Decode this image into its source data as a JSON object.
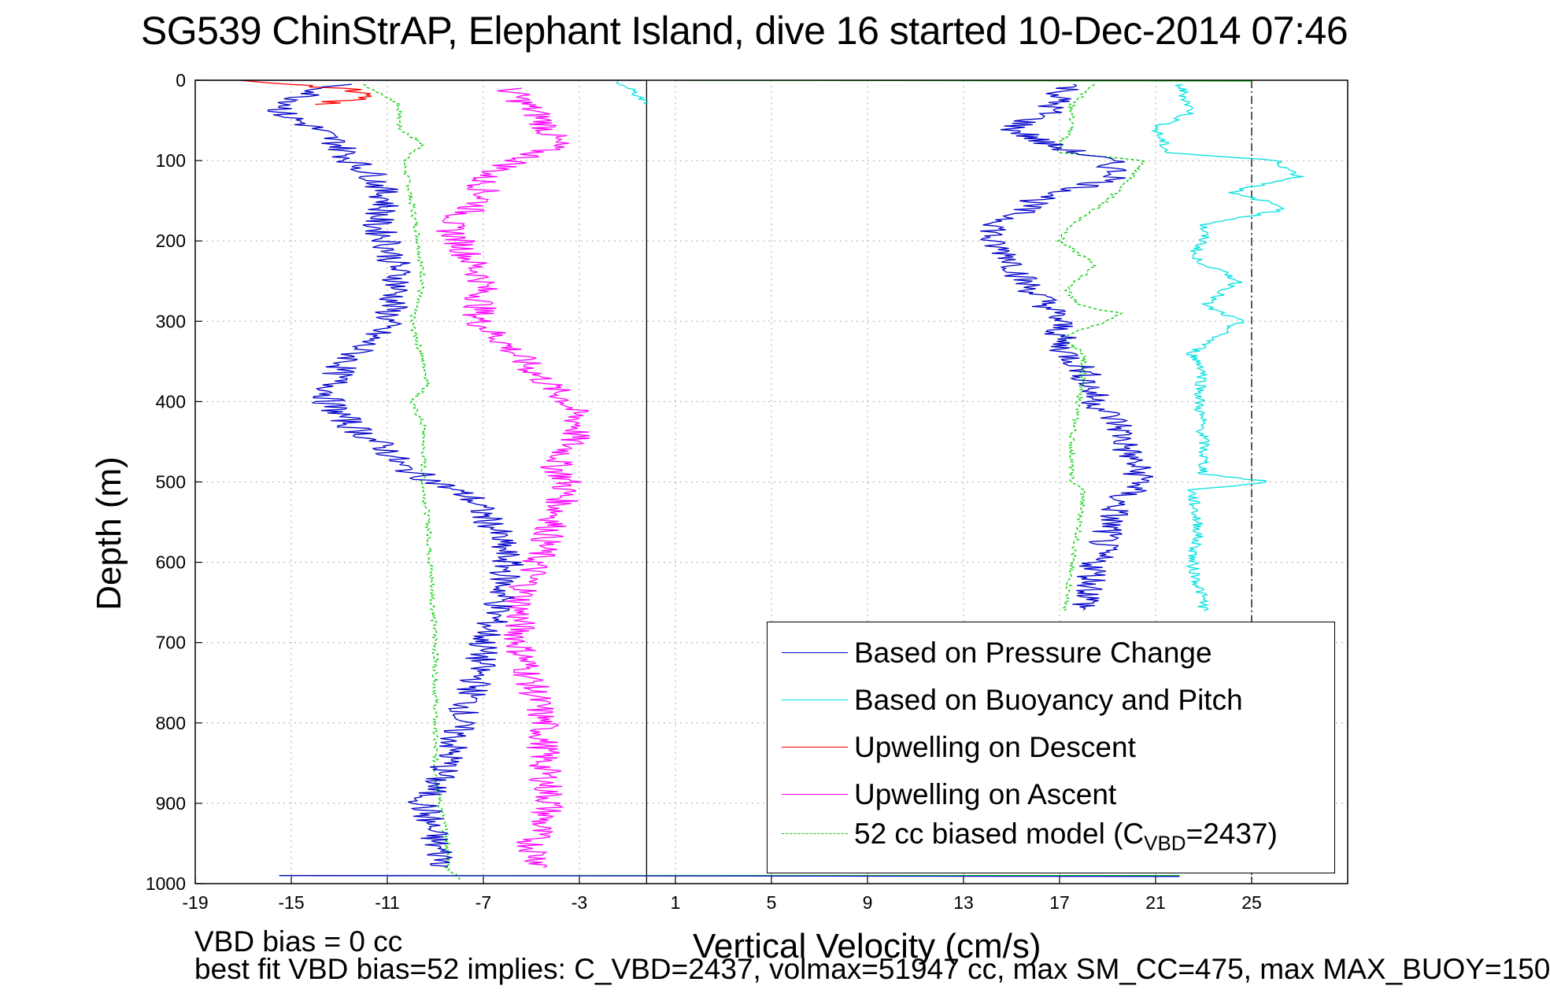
{
  "title": "SG539 ChinStrAP, Elephant Island, dive 16 started 10-Dec-2014 07:46",
  "footer": {
    "line1": "VBD bias = 0 cc",
    "line2": "best fit VBD bias=52 implies: C_VBD=2437, volmax=51947 cc, max SM_CC=475, max MAX_BUOY=150"
  },
  "colors": {
    "pressure": "#0000c8",
    "buoyancy": "#00e0e0",
    "descent": "#ff0000",
    "ascent": "#ff00ff",
    "model": "#00cc00"
  },
  "chart_data": {
    "type": "line",
    "title": "SG539 ChinStrAP, Elephant Island, dive 16 started 10-Dec-2014 07:46",
    "xlabel": "Vertical Velocity (cm/s)",
    "ylabel": "Depth (m)",
    "xlim": [
      -19,
      29
    ],
    "ylim": [
      0,
      1000
    ],
    "y_reversed": true,
    "grid": true,
    "xticks": [
      -19,
      -15,
      -11,
      -7,
      -3,
      1,
      5,
      9,
      13,
      17,
      21,
      25
    ],
    "yticks": [
      0,
      100,
      200,
      300,
      400,
      500,
      600,
      700,
      800,
      900,
      1000
    ],
    "vertical_lines": [
      {
        "x": -0.2,
        "style": "solid"
      },
      {
        "x": 25,
        "style": "dashdot"
      }
    ],
    "legend_position": "bottom-right",
    "series": [
      {
        "name": "Based on Pressure Change",
        "color": "#0000c8",
        "style": "solid",
        "profiles": [
          {
            "depth": [
              5,
              20,
              40,
              60,
              80,
              100,
              120,
              150,
              180,
              200,
              250,
              300,
              330,
              360,
              400,
              430,
              460,
              480,
              500,
              520,
              560,
              600,
              650,
              700,
              750,
              800,
              850,
              900,
              950,
              980
            ],
            "x": [
              -13,
              -14.5,
              -15.5,
              -14,
              -13,
              -12.5,
              -11.5,
              -11,
              -11.5,
              -11,
              -10.5,
              -11,
              -12,
              -13,
              -13.5,
              -12.5,
              -11,
              -10.5,
              -9,
              -7.5,
              -6.5,
              -6,
              -6.3,
              -7,
              -7.3,
              -8,
              -8.5,
              -9.5,
              -9,
              -8.5
            ]
          },
          {
            "depth": [
              5,
              20,
              40,
              60,
              80,
              100,
              120,
              150,
              180,
              200,
              220,
              250,
              280,
              300,
              330,
              360,
              400,
              430,
              460,
              490,
              500,
              520,
              560,
              600,
              640,
              660
            ],
            "x": [
              17.5,
              17,
              16.5,
              15,
              16.5,
              19,
              19.5,
              16,
              14.5,
              14,
              15,
              15.5,
              16.5,
              17,
              17,
              18,
              18.5,
              19.5,
              19.8,
              20.3,
              20.5,
              19.5,
              19,
              18.5,
              18.3,
              18
            ]
          }
        ]
      },
      {
        "name": "Based on Buoyancy and Pitch",
        "color": "#00e0e0",
        "style": "solid",
        "profiles": [
          {
            "depth": [
              0,
              10,
              20,
              30
            ],
            "x": [
              -1.5,
              -1,
              -0.5,
              -0.3
            ]
          },
          {
            "depth": [
              5,
              40,
              60,
              90,
              100,
              120,
              140,
              150,
              160,
              180,
              200,
              220,
              250,
              280,
              300,
              320,
              340,
              360,
              400,
              450,
              490,
              500,
              510,
              560,
              600,
              650,
              660
            ],
            "x": [
              22,
              22.5,
              21,
              21.5,
              26,
              27,
              24,
              25.5,
              26.5,
              23,
              23,
              22.5,
              24.5,
              23,
              24.5,
              23.5,
              22.5,
              23,
              22.8,
              23,
              23,
              25.8,
              22.5,
              22.8,
              22.5,
              23,
              23
            ]
          }
        ]
      },
      {
        "name": "Upwelling on Descent",
        "color": "#ff0000",
        "style": "solid",
        "profiles": [
          {
            "depth": [
              0,
              10,
              20,
              30
            ],
            "x": [
              -17,
              -13,
              -11.5,
              -14
            ]
          }
        ]
      },
      {
        "name": "Upwelling on Ascent",
        "color": "#ff00ff",
        "style": "solid",
        "profiles": [
          {
            "depth": [
              10,
              50,
              80,
              100,
              120,
              150,
              180,
              200,
              250,
              300,
              330,
              360,
              400,
              430,
              460,
              480,
              500,
              530,
              560,
              600,
              650,
              700,
              750,
              800,
              850,
              900,
              950,
              980
            ],
            "x": [
              -6,
              -4.5,
              -4,
              -5.5,
              -7,
              -7,
              -8.5,
              -8,
              -7,
              -7.2,
              -6,
              -5,
              -3.5,
              -3,
              -3.5,
              -4,
              -3.5,
              -3.8,
              -4.2,
              -4.8,
              -5.5,
              -5.5,
              -5,
              -4.5,
              -4.5,
              -4.2,
              -5,
              -4.5
            ]
          }
        ]
      },
      {
        "name": "52 cc biased model (C_VBD=2437)",
        "legend_label": "52 cc biased model (C",
        "legend_sub": "VBD",
        "legend_tail": "=2437)",
        "color": "#00cc00",
        "style": "dashed",
        "profiles": [
          {
            "depth": [
              5,
              30,
              60,
              80,
              100,
              150,
              200,
              250,
              300,
              330,
              350,
              380,
              400,
              430,
              460,
              500,
              550,
              600,
              650,
              700,
              750,
              800,
              850,
              900,
              950,
              980,
              995
            ],
            "x": [
              -12,
              -10.5,
              -10.5,
              -9.5,
              -10.3,
              -10,
              -9.7,
              -9.5,
              -10,
              -9.7,
              -9.5,
              -9.3,
              -10,
              -9.5,
              -9.5,
              -9.5,
              -9.3,
              -9.2,
              -9.1,
              -9,
              -9,
              -9,
              -9,
              -8.8,
              -8.5,
              -8.5,
              -8
            ]
          },
          {
            "depth": [
              5,
              30,
              60,
              80,
              90,
              100,
              120,
              150,
              180,
              200,
              210,
              230,
              260,
              280,
              290,
              300,
              320,
              340,
              360,
              400,
              450,
              500,
              510,
              560,
              600,
              650,
              660
            ],
            "x": [
              18.5,
              17.5,
              17.5,
              17,
              17,
              20.5,
              20,
              19,
              17.5,
              17,
              17.5,
              18.5,
              17.3,
              17.8,
              19.5,
              19,
              17,
              18,
              18,
              17.8,
              17.5,
              17.5,
              18,
              17.8,
              17.5,
              17.3,
              17.2
            ]
          }
        ]
      }
    ],
    "surface_lines": [
      {
        "depth": 0,
        "x": [
          -19,
          -0.3
        ],
        "color": "#0000c8"
      },
      {
        "depth": 0,
        "x": [
          1,
          25
        ],
        "color": "#00cc00"
      },
      {
        "depth": 990,
        "x": [
          -15.5,
          22
        ],
        "color": "#00cc00"
      },
      {
        "depth": 990,
        "x": [
          -15.5,
          22
        ],
        "color": "#0000c8"
      }
    ]
  }
}
